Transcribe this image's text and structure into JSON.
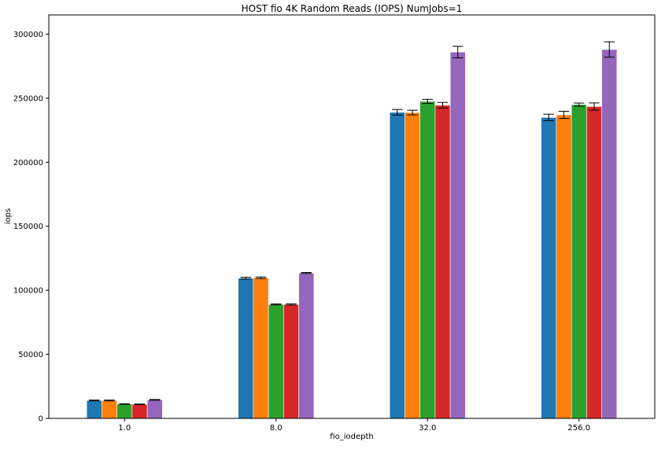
{
  "chart_data": {
    "type": "bar",
    "title": "HOST fio 4K Random Reads (IOPS) NumJobs=1",
    "xlabel": "fio_iodepth",
    "ylabel": "iops",
    "categories": [
      "1.0",
      "8.0",
      "32.0",
      "256.0"
    ],
    "ylim": [
      0,
      315000
    ],
    "yticks": [
      0,
      50000,
      100000,
      150000,
      200000,
      250000,
      300000
    ],
    "ytick_labels": [
      "0",
      "50000",
      "100000",
      "150000",
      "200000",
      "250000",
      "300000"
    ],
    "grid": false,
    "legend": "none",
    "series": [
      {
        "color": "#1f77b4",
        "values": [
          14000,
          109500,
          239000,
          235000
        ],
        "errors": [
          300,
          700,
          2200,
          2500
        ]
      },
      {
        "color": "#ff7f0e",
        "values": [
          14000,
          109800,
          238800,
          237000
        ],
        "errors": [
          300,
          600,
          1800,
          2800
        ]
      },
      {
        "color": "#2ca02c",
        "values": [
          11200,
          89000,
          247500,
          245000
        ],
        "errors": [
          200,
          400,
          1600,
          1200
        ]
      },
      {
        "color": "#d62728",
        "values": [
          11000,
          89000,
          244500,
          243500
        ],
        "errors": [
          200,
          500,
          2200,
          2800
        ]
      },
      {
        "color": "#9467bd",
        "values": [
          14500,
          113500,
          286000,
          288000
        ],
        "errors": [
          300,
          400,
          4500,
          6000
        ]
      }
    ]
  }
}
